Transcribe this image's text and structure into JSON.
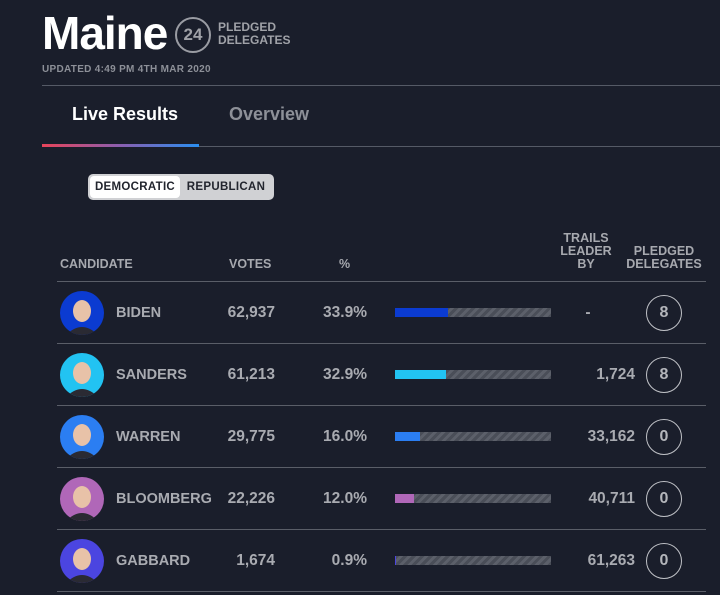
{
  "header": {
    "title": "Maine",
    "delegates_count": "24",
    "delegates_label": "PLEDGED DELEGATES",
    "updated": "UPDATED 4:49 PM 4TH MAR 2020"
  },
  "tabs": [
    {
      "label": "Live Results",
      "active": true
    },
    {
      "label": "Overview",
      "active": false
    }
  ],
  "party_toggle": {
    "options": [
      "DEMOCRATIC",
      "REPUBLICAN"
    ],
    "selected": "DEMOCRATIC"
  },
  "table": {
    "columns": {
      "candidate": "CANDIDATE",
      "votes": "VOTES",
      "pct": "%",
      "trails": "TRAILS LEADER BY",
      "delegates": "PLEDGED DELEGATES"
    },
    "rows": [
      {
        "name": "BIDEN",
        "votes": "62,937",
        "pct": "33.9%",
        "pct_value": 33.9,
        "trails": "-",
        "delegates": "8",
        "color": "#0b3bd1"
      },
      {
        "name": "SANDERS",
        "votes": "61,213",
        "pct": "32.9%",
        "pct_value": 32.9,
        "trails": "1,724",
        "delegates": "8",
        "color": "#22c3f2"
      },
      {
        "name": "WARREN",
        "votes": "29,775",
        "pct": "16.0%",
        "pct_value": 16.0,
        "trails": "33,162",
        "delegates": "0",
        "color": "#2b7ef2"
      },
      {
        "name": "BLOOMBERG",
        "votes": "22,226",
        "pct": "12.0%",
        "pct_value": 12.0,
        "trails": "40,711",
        "delegates": "0",
        "color": "#b067b8"
      },
      {
        "name": "GABBARD",
        "votes": "1,674",
        "pct": "0.9%",
        "pct_value": 0.9,
        "trails": "61,263",
        "delegates": "0",
        "color": "#4b45e0"
      }
    ]
  }
}
